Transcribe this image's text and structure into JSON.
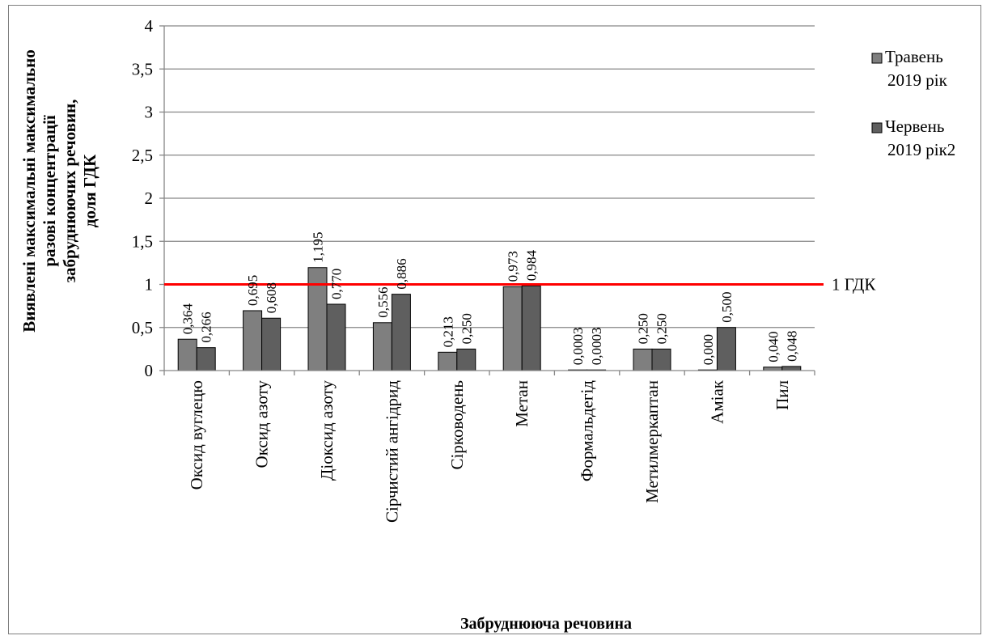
{
  "chart_data": {
    "type": "bar",
    "xlabel": "Забруднююча речовина",
    "ylabel_lines": [
      "Виявлені максимальні  максимально",
      "разові  концентрації",
      "забруднюючих речовин,",
      "доля  ГДК"
    ],
    "ylim": [
      0,
      4
    ],
    "yticks": [
      "0",
      "0,5",
      "1",
      "1,5",
      "2",
      "2,5",
      "3",
      "3,5",
      "4"
    ],
    "grid": true,
    "legend_position": "right",
    "categories": [
      "Оксид вуглецю",
      "Оксид азоту",
      "Діоксид азоту",
      "Сірчистий ангідрид",
      "Сірководень",
      "Метан",
      "Формальдегід",
      "Метилмеркаптан",
      "Аміак",
      "Пил"
    ],
    "series": [
      {
        "name_lines": [
          "Травень",
          "2019 рік"
        ],
        "color": "#7f7f7f",
        "values": [
          0.364,
          0.695,
          1.195,
          0.556,
          0.213,
          0.973,
          0.0003,
          0.25,
          0.0,
          0.04
        ],
        "labels": [
          "0,364",
          "0,695",
          "1,195",
          "0,556",
          "0,213",
          "0,973",
          "0,0003",
          "0,250",
          "0,000",
          "0,040"
        ]
      },
      {
        "name_lines": [
          "Червень",
          "2019 рік2"
        ],
        "color": "#5f5f5f",
        "values": [
          0.266,
          0.608,
          0.77,
          0.886,
          0.25,
          0.984,
          0.0003,
          0.25,
          0.5,
          0.048
        ],
        "labels": [
          "0,266",
          "0,608",
          "0,770",
          "0,886",
          "0,250",
          "0,984",
          "0,0003",
          "0,250",
          "0,500",
          "0,048"
        ]
      }
    ],
    "reference_line": {
      "value": 1,
      "label": "1 ГДК",
      "color": "#ff0000"
    }
  }
}
